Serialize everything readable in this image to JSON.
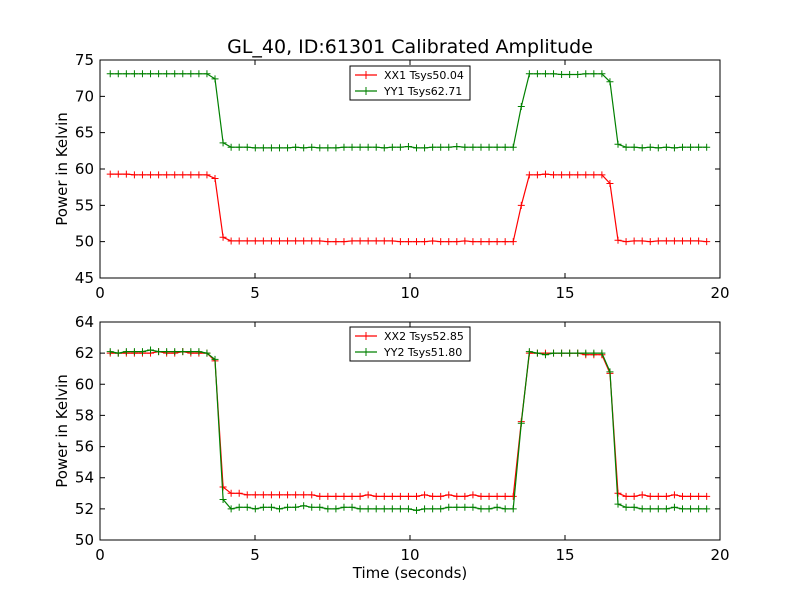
{
  "title": "GL_40, ID:61301 Calibrated Amplitude",
  "chart_data": [
    {
      "type": "line",
      "ylabel": "Power in Kelvin",
      "xlabel": "",
      "xlim": [
        0,
        20
      ],
      "ylim": [
        45,
        75
      ],
      "xticks": [
        "0",
        "5",
        "10",
        "15",
        "20"
      ],
      "yticks": [
        "45",
        "50",
        "55",
        "60",
        "65",
        "70",
        "75"
      ],
      "xtick_values": [
        0,
        5,
        10,
        15,
        20
      ],
      "ytick_values": [
        45,
        50,
        55,
        60,
        65,
        70,
        75
      ],
      "legend_position": "top-center",
      "x": [
        0.33,
        0.59,
        0.85,
        1.11,
        1.37,
        1.63,
        1.89,
        2.15,
        2.41,
        2.67,
        2.93,
        3.19,
        3.45,
        3.71,
        3.97,
        4.23,
        4.49,
        4.75,
        5.01,
        5.27,
        5.53,
        5.79,
        6.05,
        6.31,
        6.57,
        6.83,
        7.09,
        7.35,
        7.61,
        7.87,
        8.13,
        8.39,
        8.65,
        8.91,
        9.17,
        9.43,
        9.69,
        9.95,
        10.21,
        10.47,
        10.73,
        10.99,
        11.25,
        11.51,
        11.77,
        12.03,
        12.29,
        12.55,
        12.81,
        13.07,
        13.33,
        13.59,
        13.85,
        14.11,
        14.37,
        14.63,
        14.89,
        15.15,
        15.41,
        15.67,
        15.93,
        16.19,
        16.45,
        16.71,
        16.97,
        17.23,
        17.49,
        17.75,
        18.01,
        18.27,
        18.53,
        18.79,
        19.05,
        19.31,
        19.57
      ],
      "series": [
        {
          "name": "XX1 Tsys50.04",
          "color": "#ff0000",
          "values": [
            59.3,
            59.3,
            59.3,
            59.2,
            59.2,
            59.2,
            59.2,
            59.2,
            59.2,
            59.2,
            59.2,
            59.2,
            59.2,
            58.7,
            50.6,
            50.1,
            50.1,
            50.1,
            50.1,
            50.1,
            50.1,
            50.1,
            50.1,
            50.1,
            50.1,
            50.1,
            50.1,
            50.0,
            50.0,
            50.0,
            50.1,
            50.1,
            50.1,
            50.1,
            50.1,
            50.1,
            50.0,
            50.0,
            50.0,
            50.0,
            50.1,
            50.0,
            50.0,
            50.0,
            50.1,
            50.0,
            50.0,
            50.0,
            50.0,
            50.0,
            50.0,
            55.0,
            59.2,
            59.2,
            59.3,
            59.2,
            59.2,
            59.2,
            59.2,
            59.2,
            59.2,
            59.2,
            58.0,
            50.2,
            50.0,
            50.1,
            50.1,
            50.0,
            50.1,
            50.1,
            50.1,
            50.1,
            50.1,
            50.1,
            50.0
          ]
        },
        {
          "name": "YY1 Tsys62.71",
          "color": "#008000",
          "values": [
            73.1,
            73.1,
            73.1,
            73.1,
            73.1,
            73.1,
            73.1,
            73.1,
            73.1,
            73.1,
            73.1,
            73.1,
            73.1,
            72.4,
            63.6,
            63.0,
            63.0,
            63.0,
            62.9,
            62.9,
            62.9,
            62.9,
            62.9,
            63.0,
            62.9,
            63.0,
            62.9,
            62.9,
            62.9,
            63.0,
            63.0,
            63.0,
            63.0,
            63.0,
            62.9,
            63.0,
            63.0,
            63.1,
            62.9,
            62.9,
            63.0,
            63.0,
            63.0,
            63.1,
            63.0,
            63.0,
            63.0,
            63.0,
            63.0,
            63.0,
            63.0,
            68.6,
            73.1,
            73.1,
            73.1,
            73.1,
            73.0,
            73.0,
            73.0,
            73.1,
            73.1,
            73.1,
            72.0,
            63.4,
            63.0,
            63.0,
            62.9,
            63.0,
            62.9,
            63.0,
            62.9,
            63.0,
            63.0,
            63.0,
            63.0
          ]
        }
      ]
    },
    {
      "type": "line",
      "ylabel": "Power in Kelvin",
      "xlabel": "Time (seconds)",
      "xlim": [
        0,
        20
      ],
      "ylim": [
        50,
        64
      ],
      "xticks": [
        "0",
        "5",
        "10",
        "15",
        "20"
      ],
      "yticks": [
        "50",
        "52",
        "54",
        "56",
        "58",
        "60",
        "62",
        "64"
      ],
      "xtick_values": [
        0,
        5,
        10,
        15,
        20
      ],
      "ytick_values": [
        50,
        52,
        54,
        56,
        58,
        60,
        62,
        64
      ],
      "legend_position": "top-center",
      "x": [
        0.33,
        0.59,
        0.85,
        1.11,
        1.37,
        1.63,
        1.89,
        2.15,
        2.41,
        2.67,
        2.93,
        3.19,
        3.45,
        3.71,
        3.97,
        4.23,
        4.49,
        4.75,
        5.01,
        5.27,
        5.53,
        5.79,
        6.05,
        6.31,
        6.57,
        6.83,
        7.09,
        7.35,
        7.61,
        7.87,
        8.13,
        8.39,
        8.65,
        8.91,
        9.17,
        9.43,
        9.69,
        9.95,
        10.21,
        10.47,
        10.73,
        10.99,
        11.25,
        11.51,
        11.77,
        12.03,
        12.29,
        12.55,
        12.81,
        13.07,
        13.33,
        13.59,
        13.85,
        14.11,
        14.37,
        14.63,
        14.89,
        15.15,
        15.41,
        15.67,
        15.93,
        16.19,
        16.45,
        16.71,
        16.97,
        17.23,
        17.49,
        17.75,
        18.01,
        18.27,
        18.53,
        18.79,
        19.05,
        19.31,
        19.57
      ],
      "series": [
        {
          "name": "XX2 Tsys52.85",
          "color": "#ff0000",
          "values": [
            62.0,
            62.0,
            62.0,
            62.0,
            62.0,
            62.0,
            62.1,
            62.0,
            62.0,
            62.1,
            62.0,
            62.0,
            62.0,
            61.5,
            53.4,
            53.0,
            53.0,
            52.9,
            52.9,
            52.9,
            52.9,
            52.9,
            52.9,
            52.9,
            52.9,
            52.9,
            52.8,
            52.8,
            52.8,
            52.8,
            52.8,
            52.8,
            52.9,
            52.8,
            52.8,
            52.8,
            52.8,
            52.8,
            52.8,
            52.9,
            52.8,
            52.8,
            52.9,
            52.8,
            52.8,
            52.9,
            52.8,
            52.8,
            52.8,
            52.8,
            52.8,
            57.6,
            62.0,
            62.0,
            62.0,
            62.0,
            62.0,
            62.0,
            62.0,
            61.9,
            61.9,
            61.9,
            60.7,
            53.0,
            52.8,
            52.8,
            52.9,
            52.8,
            52.8,
            52.8,
            52.9,
            52.8,
            52.8,
            52.8,
            52.8
          ]
        },
        {
          "name": "YY2 Tsys51.80",
          "color": "#008000",
          "values": [
            62.1,
            62.0,
            62.1,
            62.1,
            62.1,
            62.2,
            62.1,
            62.1,
            62.1,
            62.1,
            62.1,
            62.1,
            62.0,
            61.6,
            52.6,
            52.0,
            52.1,
            52.1,
            52.0,
            52.1,
            52.1,
            52.0,
            52.1,
            52.1,
            52.2,
            52.1,
            52.1,
            52.0,
            52.0,
            52.1,
            52.1,
            52.0,
            52.0,
            52.0,
            52.0,
            52.0,
            52.0,
            52.0,
            51.9,
            52.0,
            52.0,
            52.0,
            52.1,
            52.1,
            52.1,
            52.1,
            52.0,
            52.0,
            52.1,
            52.0,
            52.0,
            57.5,
            62.1,
            62.0,
            61.9,
            62.0,
            62.0,
            62.0,
            62.0,
            62.0,
            62.0,
            62.0,
            60.8,
            52.3,
            52.1,
            52.1,
            52.0,
            52.0,
            52.0,
            52.0,
            52.1,
            52.0,
            52.0,
            52.0,
            52.0
          ]
        }
      ]
    }
  ]
}
